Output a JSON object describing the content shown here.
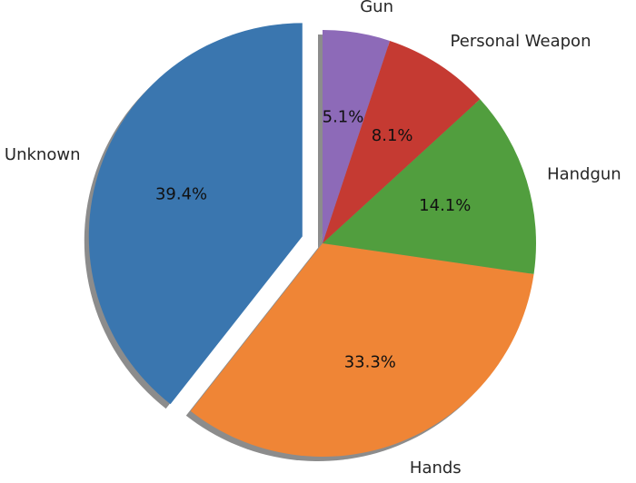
{
  "chart_data": {
    "type": "pie",
    "title": "",
    "categories": [
      "Unknown",
      "Hands",
      "Handgun",
      "Personal Weapon",
      "Gun"
    ],
    "values": [
      39.4,
      33.3,
      14.1,
      8.1,
      5.1
    ],
    "value_labels": [
      "39.4%",
      "33.3%",
      "14.1%",
      "8.1%",
      "5.1%"
    ],
    "colors": [
      "#3a76af",
      "#ef8536",
      "#519e3e",
      "#c53a32",
      "#8d6ab8"
    ],
    "explode": [
      0.1,
      0,
      0,
      0,
      0
    ],
    "start_angle_deg": 90,
    "direction": "counterclockwise",
    "shadow": true,
    "legend": "none"
  }
}
